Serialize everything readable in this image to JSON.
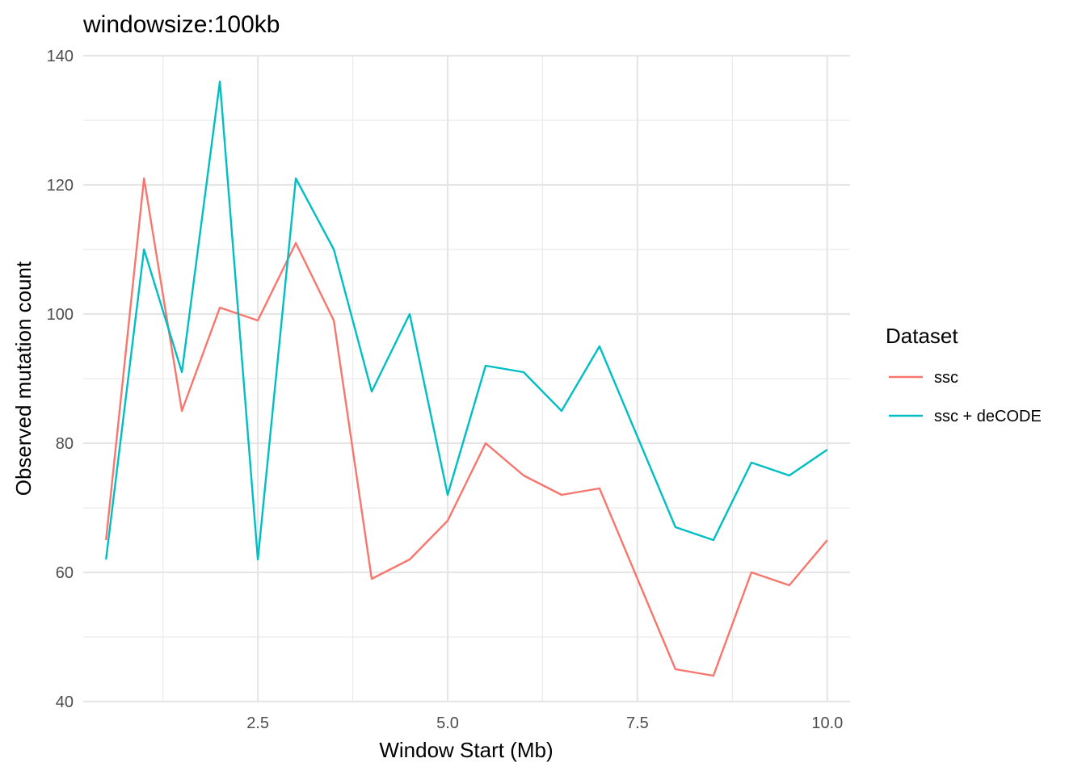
{
  "chart_data": {
    "type": "line",
    "title": "windowsize:100kb",
    "xlabel": "Window Start (Mb)",
    "ylabel": "Observed mutation count",
    "xlim": [
      0.2,
      10.3
    ],
    "ylim": [
      40,
      140
    ],
    "x_ticks": [
      "2.5",
      "5.0",
      "7.5",
      "10.0"
    ],
    "y_ticks": [
      "40",
      "60",
      "80",
      "100",
      "120",
      "140"
    ],
    "x": [
      0.5,
      1.0,
      1.5,
      2.0,
      2.5,
      3.0,
      3.5,
      4.0,
      4.5,
      5.0,
      5.5,
      6.0,
      6.5,
      7.0,
      7.5,
      8.0,
      8.5,
      9.0,
      9.5,
      10.0
    ],
    "series": [
      {
        "name": "ssc",
        "color": "#F8766D",
        "values": [
          65,
          121,
          85,
          101,
          99,
          111,
          99,
          59,
          62,
          68,
          80,
          75,
          72,
          73,
          59,
          45,
          44,
          60,
          58,
          65
        ]
      },
      {
        "name": "ssc + deCODE",
        "color": "#00BFC4",
        "values": [
          62,
          110,
          91,
          136,
          62,
          121,
          110,
          88,
          100,
          72,
          92,
          91,
          85,
          95,
          81,
          67,
          65,
          77,
          75,
          79
        ]
      }
    ],
    "grid": true,
    "legend": {
      "title": "Dataset",
      "position": "right"
    }
  }
}
